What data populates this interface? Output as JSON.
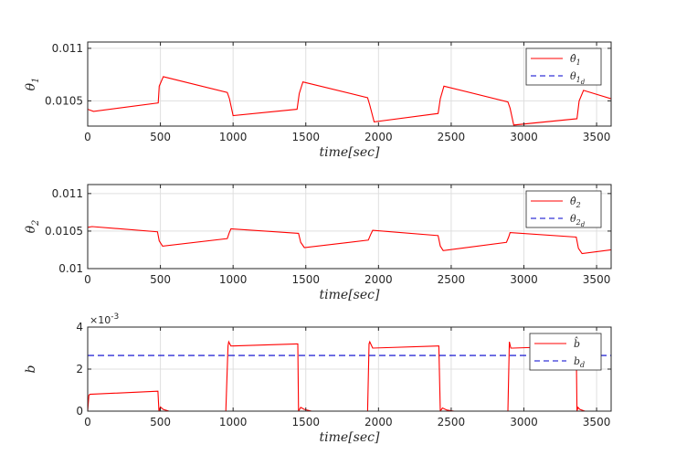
{
  "chart_data": [
    {
      "type": "line",
      "xlabel": "time[sec]",
      "ylabel": "θ1",
      "xlim": [
        0,
        3600
      ],
      "ylim": [
        0.01026,
        0.01106
      ],
      "xticks": [
        0,
        500,
        1000,
        1500,
        2000,
        2500,
        3000,
        3500
      ],
      "xtick_labels": [
        "0",
        "500",
        "1000",
        "1500",
        "2000",
        "2500",
        "3000",
        "3500"
      ],
      "yticks": [
        0.0105,
        0.011
      ],
      "ytick_labels": [
        "0.0105",
        "0.011"
      ],
      "grid": true,
      "legend_position": "top-right",
      "series": [
        {
          "name": "θ̂1",
          "color": "#ff0000",
          "style": "solid",
          "x": [
            0,
            40,
            485,
            492,
            520,
            960,
            975,
            1000,
            1440,
            1455,
            1480,
            1925,
            1940,
            1970,
            2410,
            2425,
            2450,
            2890,
            2905,
            2930,
            3365,
            3380,
            3410,
            3600
          ],
          "y": [
            0.01042,
            0.0104,
            0.01048,
            0.01064,
            0.01073,
            0.01058,
            0.01052,
            0.01036,
            0.01042,
            0.01057,
            0.01068,
            0.01053,
            0.01046,
            0.0103,
            0.01038,
            0.01052,
            0.01064,
            0.01049,
            0.01043,
            0.01027,
            0.01033,
            0.0105,
            0.0106,
            0.01052
          ]
        },
        {
          "name": "θ1d",
          "color": "#0000cc",
          "style": "dashed",
          "x": [
            0,
            3600
          ],
          "y": [
            0.01106,
            0.01106
          ]
        }
      ]
    },
    {
      "type": "line",
      "xlabel": "time[sec]",
      "ylabel": "θ2",
      "xlim": [
        0,
        3600
      ],
      "ylim": [
        0.01,
        0.01112
      ],
      "xticks": [
        0,
        500,
        1000,
        1500,
        2000,
        2500,
        3000,
        3500
      ],
      "xtick_labels": [
        "0",
        "500",
        "1000",
        "1500",
        "2000",
        "2500",
        "3000",
        "3500"
      ],
      "yticks": [
        0.01,
        0.0105,
        0.011
      ],
      "ytick_labels": [
        "0.01",
        "0.0105",
        "0.011"
      ],
      "grid": true,
      "legend_position": "top-right",
      "series": [
        {
          "name": "θ̂2",
          "color": "#ff0000",
          "style": "solid",
          "x": [
            0,
            30,
            480,
            492,
            515,
            960,
            972,
            985,
            1450,
            1465,
            1490,
            1930,
            1945,
            1960,
            2410,
            2425,
            2445,
            2880,
            2895,
            2905,
            3360,
            3375,
            3400,
            3600
          ],
          "y": [
            0.01055,
            0.01056,
            0.01049,
            0.01037,
            0.0103,
            0.0104,
            0.01047,
            0.01053,
            0.01047,
            0.01035,
            0.01028,
            0.01038,
            0.01045,
            0.01051,
            0.01044,
            0.0103,
            0.01024,
            0.01035,
            0.01042,
            0.01048,
            0.01042,
            0.01027,
            0.0102,
            0.01025
          ]
        },
        {
          "name": "θ2d",
          "color": "#0000cc",
          "style": "dashed",
          "x": [
            0,
            3600
          ],
          "y": [
            0.01112,
            0.01112
          ]
        }
      ]
    },
    {
      "type": "line",
      "xlabel": "time[sec]",
      "ylabel": "b",
      "exponent_label": "×10-3",
      "xlim": [
        0,
        3600
      ],
      "ylim": [
        0,
        0.004
      ],
      "xticks": [
        0,
        500,
        1000,
        1500,
        2000,
        2500,
        3000,
        3500
      ],
      "xtick_labels": [
        "0",
        "500",
        "1000",
        "1500",
        "2000",
        "2500",
        "3000",
        "3500"
      ],
      "yticks": [
        0,
        0.002,
        0.004
      ],
      "ytick_labels": [
        "0",
        "2",
        "4"
      ],
      "grid": true,
      "legend_position": "top-right",
      "series": [
        {
          "name": "b̂",
          "color": "#ff0000",
          "style": "solid",
          "x": [
            0,
            8,
            15,
            480,
            483,
            490,
            500,
            520,
            560,
            950,
            965,
            970,
            985,
            1440,
            1445,
            1450,
            1465,
            1490,
            1540,
            1925,
            1935,
            1940,
            1960,
            2410,
            2415,
            2425,
            2440,
            2470,
            2520,
            2890,
            2900,
            2910,
            2925,
            3360,
            3365,
            3372,
            3385,
            3420,
            3600
          ],
          "y": [
            0,
            0.00075,
            0.0008,
            0.00095,
            0.00095,
            0,
            0.0002,
            8e-05,
            0,
            0,
            0.0031,
            0.0033,
            0.0031,
            0.0032,
            0.0032,
            0,
            0.00018,
            8e-05,
            0,
            0,
            0.0032,
            0.0033,
            0.003,
            0.0031,
            0.0031,
            0,
            0.00015,
            5e-05,
            0,
            0,
            0.0033,
            0.003,
            0.003,
            0.0031,
            0,
            0.00018,
            8e-05,
            0,
            0
          ]
        },
        {
          "name": "bd",
          "color": "#0000cc",
          "style": "dashed",
          "x": [
            0,
            3600
          ],
          "y": [
            0.00265,
            0.00265
          ]
        }
      ]
    }
  ]
}
